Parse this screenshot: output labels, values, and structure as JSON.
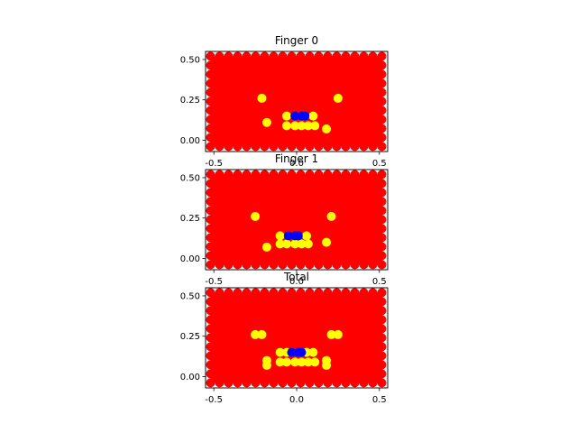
{
  "chart_data": [
    {
      "type": "scatter",
      "title": "Finger 0",
      "xlabel": "",
      "ylabel": "",
      "xlim": [
        -0.55,
        0.55
      ],
      "ylim": [
        -0.07,
        0.55
      ],
      "xticks": [
        "-0.5",
        "0.0",
        "0.5"
      ],
      "xtick_values": [
        -0.5,
        0.0,
        0.5
      ],
      "yticks": [
        "0.00",
        "0.25",
        "0.50"
      ],
      "ytick_values": [
        0.0,
        0.25,
        0.5
      ],
      "grid": false,
      "series": [
        {
          "color": "#ff0000",
          "fill_region": {
            "x": [
              -0.52,
              0.52
            ],
            "y": [
              -0.04,
              0.52
            ]
          }
        },
        {
          "color": "#ffff00",
          "points": [
            [
              -0.21,
              0.26
            ],
            [
              0.25,
              0.26
            ],
            [
              -0.18,
              0.11
            ],
            [
              0.18,
              0.07
            ],
            [
              -0.06,
              0.15
            ],
            [
              0.1,
              0.15
            ],
            [
              -0.06,
              0.09
            ],
            [
              -0.01,
              0.09
            ],
            [
              0.03,
              0.09
            ],
            [
              0.07,
              0.09
            ],
            [
              0.11,
              0.09
            ]
          ]
        },
        {
          "color": "#0000ff",
          "points": [
            [
              -0.01,
              0.15
            ],
            [
              0.03,
              0.15
            ],
            [
              0.05,
              0.15
            ]
          ]
        }
      ]
    },
    {
      "type": "scatter",
      "title": "Finger 1",
      "xlabel": "",
      "ylabel": "",
      "xlim": [
        -0.55,
        0.55
      ],
      "ylim": [
        -0.07,
        0.55
      ],
      "xticks": [
        "-0.5",
        "0.0",
        "0.5"
      ],
      "xtick_values": [
        -0.5,
        0.0,
        0.5
      ],
      "yticks": [
        "0.00",
        "0.25",
        "0.50"
      ],
      "ytick_values": [
        0.0,
        0.25,
        0.5
      ],
      "grid": false,
      "series": [
        {
          "color": "#ff0000",
          "fill_region": {
            "x": [
              -0.52,
              0.52
            ],
            "y": [
              -0.04,
              0.52
            ]
          }
        },
        {
          "color": "#ffff00",
          "points": [
            [
              -0.25,
              0.26
            ],
            [
              0.21,
              0.26
            ],
            [
              -0.18,
              0.07
            ],
            [
              0.18,
              0.1
            ],
            [
              -0.1,
              0.14
            ],
            [
              0.06,
              0.14
            ],
            [
              -0.1,
              0.09
            ],
            [
              -0.06,
              0.09
            ],
            [
              -0.01,
              0.09
            ],
            [
              0.03,
              0.09
            ],
            [
              0.07,
              0.09
            ]
          ]
        },
        {
          "color": "#0000ff",
          "points": [
            [
              -0.05,
              0.14
            ],
            [
              -0.01,
              0.14
            ],
            [
              0.01,
              0.14
            ]
          ]
        }
      ]
    },
    {
      "type": "scatter",
      "title": "Total",
      "xlabel": "",
      "ylabel": "",
      "xlim": [
        -0.55,
        0.55
      ],
      "ylim": [
        -0.07,
        0.55
      ],
      "xticks": [
        "-0.5",
        "0.0",
        "0.5"
      ],
      "xtick_values": [
        -0.5,
        0.0,
        0.5
      ],
      "yticks": [
        "0.00",
        "0.25",
        "0.50"
      ],
      "ytick_values": [
        0.0,
        0.25,
        0.5
      ],
      "grid": false,
      "series": [
        {
          "color": "#ff0000",
          "fill_region": {
            "x": [
              -0.52,
              0.52
            ],
            "y": [
              -0.04,
              0.52
            ]
          }
        },
        {
          "color": "#ffff00",
          "points": [
            [
              -0.25,
              0.26
            ],
            [
              -0.21,
              0.26
            ],
            [
              0.21,
              0.26
            ],
            [
              0.25,
              0.26
            ],
            [
              -0.18,
              0.1
            ],
            [
              -0.18,
              0.07
            ],
            [
              0.18,
              0.1
            ],
            [
              0.18,
              0.07
            ],
            [
              -0.1,
              0.15
            ],
            [
              -0.06,
              0.15
            ],
            [
              0.06,
              0.15
            ],
            [
              0.1,
              0.15
            ],
            [
              -0.1,
              0.09
            ],
            [
              -0.06,
              0.09
            ],
            [
              -0.01,
              0.09
            ],
            [
              0.03,
              0.09
            ],
            [
              0.07,
              0.09
            ],
            [
              0.11,
              0.09
            ]
          ]
        },
        {
          "color": "#0000ff",
          "points": [
            [
              -0.03,
              0.15
            ],
            [
              0.01,
              0.15
            ],
            [
              0.03,
              0.15
            ]
          ]
        }
      ]
    }
  ]
}
